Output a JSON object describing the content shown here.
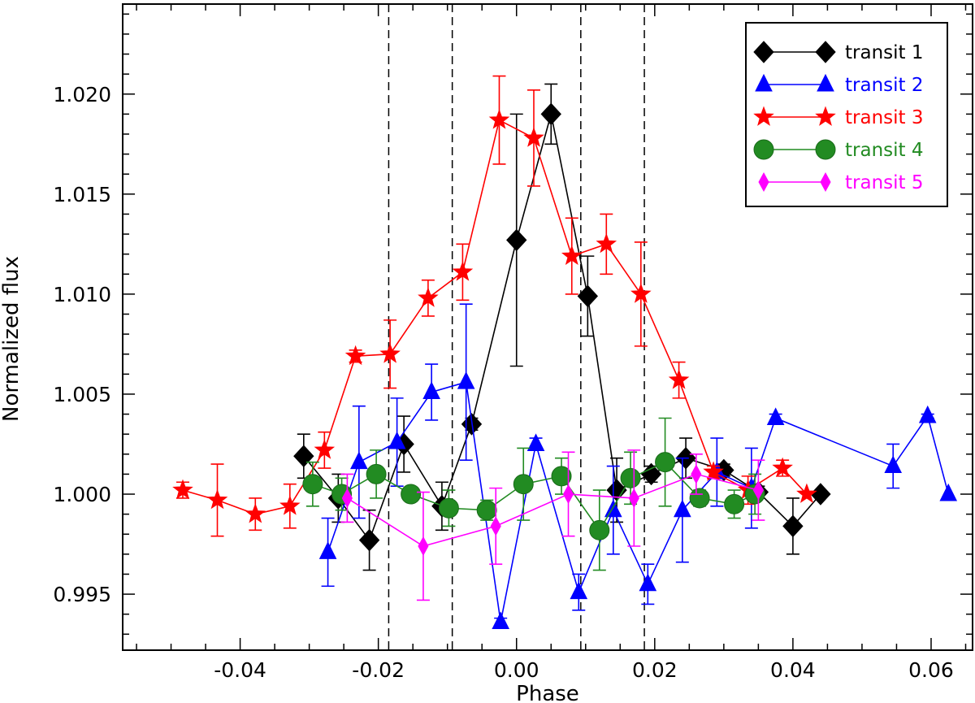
{
  "chart_data": {
    "type": "scatter",
    "xlabel": "Phase",
    "ylabel": "Normalized flux",
    "xlim": [
      -0.057,
      0.066
    ],
    "ylim": [
      0.9922,
      1.0245
    ],
    "xticks": [
      -0.04,
      -0.02,
      0.0,
      0.02,
      0.04,
      0.06
    ],
    "xtick_labels": [
      "-0.04",
      "-0.02",
      "0.00",
      "0.02",
      "0.04",
      "0.06"
    ],
    "yticks": [
      0.995,
      1.0,
      1.005,
      1.01,
      1.015,
      1.02
    ],
    "ytick_labels": [
      "0.995",
      "1.000",
      "1.005",
      "1.010",
      "1.015",
      "1.020"
    ],
    "vlines": [
      -0.0185,
      -0.0093,
      0.0093,
      0.0185
    ],
    "legend_position": "top-right",
    "series": [
      {
        "name": "transit 1",
        "color": "#000000",
        "marker": "diamond",
        "x": [
          -0.0308,
          -0.0258,
          -0.0213,
          -0.0163,
          -0.0108,
          -0.0065,
          0.0,
          0.005,
          0.0103,
          0.0145,
          0.0195,
          0.0245,
          0.03,
          0.035,
          0.04,
          0.044
        ],
        "y": [
          1.0019,
          0.9998,
          0.9977,
          1.0025,
          0.9994,
          1.0035,
          1.0127,
          1.019,
          1.0099,
          1.0002,
          1.001,
          1.0018,
          1.0012,
          1.0001,
          0.9984,
          1.0
        ],
        "err": [
          0.0011,
          0.0012,
          0.0015,
          0.0014,
          0.0012,
          0.0003,
          0.0063,
          0.0015,
          0.002,
          0.0016,
          0.0004,
          0.001,
          0.0003,
          0.0003,
          0.0014,
          0.0
        ]
      },
      {
        "name": "transit 2",
        "color": "#0000ff",
        "marker": "triangle",
        "x": [
          -0.0273,
          -0.0228,
          -0.0173,
          -0.0123,
          -0.0073,
          -0.0023,
          0.0028,
          0.009,
          0.014,
          0.019,
          0.024,
          0.029,
          0.034,
          0.0375,
          0.0545,
          0.0595,
          0.0625
        ],
        "y": [
          0.9971,
          1.0016,
          1.0026,
          1.0051,
          1.0056,
          0.9936,
          1.0025,
          0.9951,
          0.9992,
          0.9955,
          0.9992,
          1.0011,
          1.0003,
          1.0038,
          1.0014,
          1.0039,
          1.0
        ],
        "err": [
          0.0017,
          0.0028,
          0.0022,
          0.0014,
          0.0039,
          0.0002,
          0.0003,
          0.0009,
          0.0022,
          0.001,
          0.0026,
          0.0017,
          0.002,
          0.0002,
          0.0011,
          0.0001,
          0.0
        ]
      },
      {
        "name": "transit 3",
        "color": "#ff0000",
        "marker": "star",
        "x": [
          -0.0483,
          -0.0433,
          -0.0378,
          -0.0328,
          -0.0278,
          -0.0233,
          -0.0183,
          -0.0128,
          -0.0078,
          -0.0025,
          0.0025,
          0.008,
          0.013,
          0.018,
          0.0235,
          0.0285,
          0.0335,
          0.0385,
          0.042
        ],
        "y": [
          1.0002,
          0.9997,
          0.999,
          0.9994,
          1.0022,
          1.0069,
          1.007,
          1.0098,
          1.0111,
          1.0187,
          1.0178,
          1.0119,
          1.0125,
          1.01,
          1.0057,
          1.0011,
          1.0002,
          1.0013,
          1.0
        ],
        "err": [
          0.0004,
          0.0018,
          0.0008,
          0.0011,
          0.0009,
          0.0003,
          0.0017,
          0.0009,
          0.0014,
          0.0022,
          0.0024,
          0.0019,
          0.0015,
          0.0026,
          0.0009,
          0.0003,
          0.0007,
          0.0004,
          0.0
        ]
      },
      {
        "name": "transit 4",
        "color": "#228b22",
        "marker": "circle",
        "x": [
          -0.0295,
          -0.0253,
          -0.0203,
          -0.0153,
          -0.0098,
          -0.0043,
          0.001,
          0.0065,
          0.012,
          0.0165,
          0.0215,
          0.0265,
          0.0315,
          0.0345
        ],
        "y": [
          1.0005,
          1.0,
          1.001,
          1.0,
          0.9993,
          0.9992,
          1.0005,
          1.0009,
          0.9982,
          1.0008,
          1.0016,
          0.9998,
          0.9995,
          1.0
        ],
        "err": [
          0.0011,
          0.0008,
          0.0012,
          0.0003,
          0.0009,
          0.0005,
          0.0018,
          0.0009,
          0.002,
          0.0013,
          0.0022,
          0.0004,
          0.0007,
          0.001
        ]
      },
      {
        "name": "transit 5",
        "color": "#ff00ff",
        "marker": "thin-diamond",
        "x": [
          -0.0245,
          -0.0135,
          -0.003,
          0.0075,
          0.017,
          0.026,
          0.035
        ],
        "y": [
          0.9998,
          0.9974,
          0.9984,
          1.0,
          0.9998,
          1.001,
          1.0002
        ],
        "err": [
          0.0012,
          0.0027,
          0.0019,
          0.0021,
          0.0024,
          0.001,
          0.0015
        ]
      }
    ]
  }
}
